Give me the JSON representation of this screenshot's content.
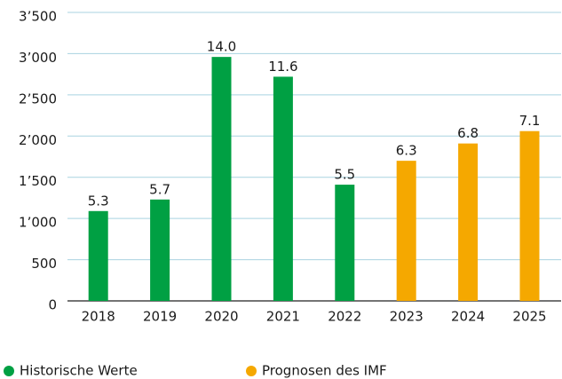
{
  "chart_data": {
    "type": "bar",
    "categories": [
      "2018",
      "2019",
      "2020",
      "2021",
      "2022",
      "2023",
      "2024",
      "2025"
    ],
    "series": [
      {
        "name": "Historische Werte",
        "color": "#00a043",
        "values": [
          1090,
          1230,
          2960,
          2720,
          1410,
          null,
          null,
          null
        ]
      },
      {
        "name": "Prognosen des IMF",
        "color": "#f5a800",
        "values": [
          null,
          null,
          null,
          null,
          null,
          1700,
          1910,
          2060
        ]
      }
    ],
    "bar_labels": [
      "5.3",
      "5.7",
      "14.0",
      "11.6",
      "5.5",
      "6.3",
      "6.8",
      "7.1"
    ],
    "ylim": [
      0,
      3500
    ],
    "yticks": [
      0,
      500,
      {
        "value": 1000,
        "label": "1’000"
      },
      {
        "value": 1500,
        "label": "1’500"
      },
      {
        "value": 2000,
        "label": "2’000"
      },
      {
        "value": 2500,
        "label": "2’500"
      },
      {
        "value": 3000,
        "label": "3’000"
      },
      {
        "value": 3500,
        "label": "3’500"
      }
    ],
    "grid": true
  }
}
